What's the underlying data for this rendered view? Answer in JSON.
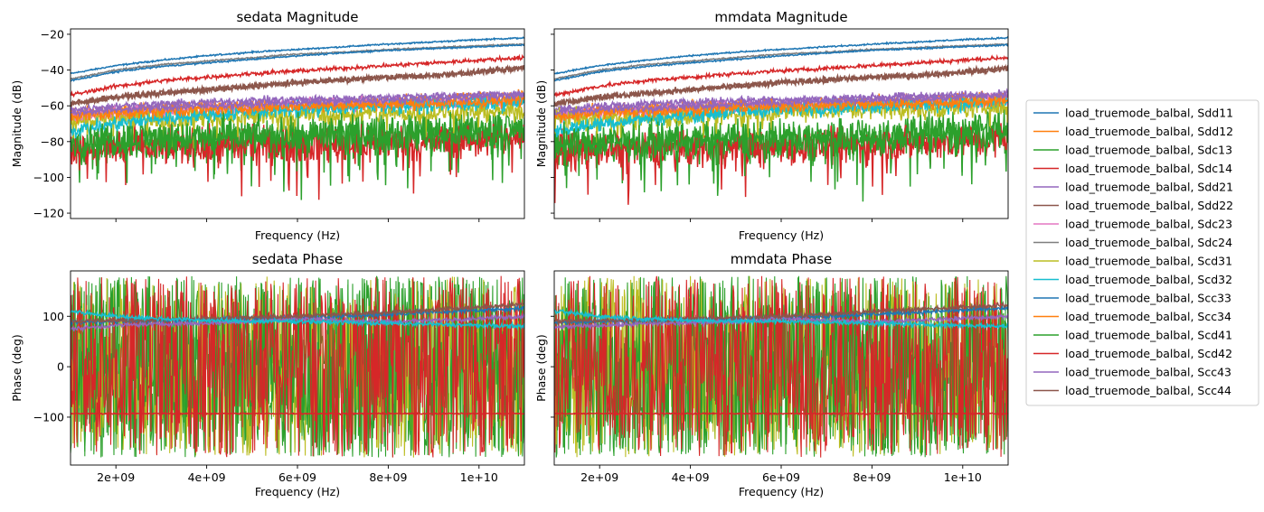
{
  "chart_data": [
    {
      "type": "line",
      "panel": "top-left",
      "title": "sedata Magnitude",
      "xlabel": "Frequency (Hz)",
      "ylabel": "Magnitude (dB)",
      "xlim": [
        1000000000.0,
        11000000000.0
      ],
      "ylim": [
        -123,
        -17
      ],
      "yticks": [
        -120,
        -100,
        -80,
        -60,
        -40,
        -20
      ],
      "xtick_labels_visible": false,
      "x": [
        1000000000.0,
        2000000000.0,
        3000000000.0,
        4000000000.0,
        5000000000.0,
        6000000000.0,
        7000000000.0,
        8000000000.0,
        9000000000.0,
        10000000000.0,
        11000000000.0
      ],
      "series": [
        {
          "name": "Sdd11",
          "values": [
            -42,
            -37.5,
            -34.5,
            -32,
            -30,
            -28.5,
            -27,
            -25.5,
            -24.3,
            -23,
            -22
          ]
        },
        {
          "name": "Sdd12",
          "values": [
            -65,
            -63,
            -62,
            -61,
            -60,
            -60,
            -59,
            -58,
            -57,
            -56,
            -55
          ]
        },
        {
          "name": "Sdc13",
          "values": [
            -82,
            -81,
            -80,
            -79,
            -78,
            -78,
            -77,
            -76,
            -75,
            -74,
            -73
          ]
        },
        {
          "name": "Sdc14",
          "values": [
            -85,
            -84,
            -83,
            -83,
            -82,
            -82,
            -82,
            -81,
            -80,
            -79,
            -78
          ]
        },
        {
          "name": "Sdd21",
          "values": [
            -62,
            -60,
            -59,
            -58,
            -57,
            -56.5,
            -56,
            -55,
            -54.5,
            -54,
            -53
          ]
        },
        {
          "name": "Sdd22",
          "values": [
            -59,
            -55,
            -53,
            -51,
            -49,
            -47,
            -45.5,
            -44,
            -43,
            -41,
            -39
          ]
        },
        {
          "name": "Sdc23",
          "values": [
            -66,
            -64,
            -63,
            -62,
            -61,
            -60,
            -59.5,
            -59,
            -58.5,
            -58,
            -57
          ]
        },
        {
          "name": "Sdc24",
          "values": [
            -45,
            -40,
            -37,
            -35,
            -33,
            -31,
            -30,
            -28.5,
            -27.5,
            -26.5,
            -25.5
          ]
        },
        {
          "name": "Scd31",
          "values": [
            -68,
            -67,
            -67,
            -66,
            -66,
            -65,
            -65,
            -64,
            -64,
            -63,
            -63
          ]
        },
        {
          "name": "Scd32",
          "values": [
            -74,
            -70,
            -67,
            -65,
            -63,
            -62,
            -61,
            -60,
            -59.5,
            -59,
            -58
          ]
        },
        {
          "name": "Scc33",
          "values": [
            -46,
            -41,
            -38,
            -36,
            -34,
            -32,
            -30.5,
            -29,
            -28,
            -27,
            -26
          ]
        },
        {
          "name": "Scc34",
          "values": [
            -66,
            -64,
            -63,
            -62,
            -61,
            -60,
            -59.5,
            -59,
            -58.5,
            -58,
            -57
          ]
        },
        {
          "name": "Scd41",
          "values": [
            -80,
            -79,
            -78,
            -78,
            -77,
            -77,
            -76,
            -76,
            -75,
            -75,
            -74
          ]
        },
        {
          "name": "Scd42",
          "values": [
            -54,
            -49,
            -46,
            -44,
            -42,
            -40.5,
            -39,
            -37.5,
            -36,
            -34.5,
            -33
          ]
        },
        {
          "name": "Scc43",
          "values": [
            -64,
            -62,
            -61,
            -60,
            -59,
            -58,
            -57.5,
            -57,
            -56,
            -55,
            -54
          ]
        },
        {
          "name": "Scc44",
          "values": [
            -59,
            -55,
            -53,
            -51,
            -49,
            -47,
            -45.5,
            -44,
            -43,
            -41,
            -39
          ]
        }
      ]
    },
    {
      "type": "line",
      "panel": "top-right",
      "title": "mmdata Magnitude",
      "xlabel": "Frequency (Hz)",
      "ylabel": "Magnitude (dB)",
      "xlim": [
        1000000000.0,
        11000000000.0
      ],
      "ylim": [
        -123,
        -17
      ],
      "yticks": [
        -120,
        -100,
        -80,
        -60,
        -40,
        -20
      ],
      "ytick_labels_visible": false,
      "xtick_labels_visible": false,
      "x": [
        1000000000.0,
        2000000000.0,
        3000000000.0,
        4000000000.0,
        5000000000.0,
        6000000000.0,
        7000000000.0,
        8000000000.0,
        9000000000.0,
        10000000000.0,
        11000000000.0
      ],
      "series": [
        {
          "name": "Sdd11",
          "values": [
            -42,
            -37.5,
            -34.5,
            -32,
            -30,
            -28.5,
            -27,
            -25.5,
            -24.3,
            -23,
            -22
          ]
        },
        {
          "name": "Sdd12",
          "values": [
            -65,
            -63,
            -62,
            -61,
            -60,
            -60,
            -59,
            -58,
            -57,
            -56,
            -55
          ]
        },
        {
          "name": "Sdc13",
          "values": [
            -83,
            -82,
            -81,
            -80,
            -80,
            -79,
            -78,
            -77,
            -76,
            -74,
            -72
          ]
        },
        {
          "name": "Sdc14",
          "values": [
            -86,
            -85,
            -84,
            -84,
            -83,
            -83,
            -83,
            -82,
            -81,
            -80,
            -79
          ]
        },
        {
          "name": "Sdd21",
          "values": [
            -62,
            -60,
            -59,
            -58,
            -57,
            -56.5,
            -56,
            -55,
            -54.5,
            -54,
            -53
          ]
        },
        {
          "name": "Sdd22",
          "values": [
            -59,
            -55,
            -53,
            -51,
            -49,
            -47,
            -45.5,
            -44,
            -43,
            -41,
            -39
          ]
        },
        {
          "name": "Sdc23",
          "values": [
            -66,
            -64,
            -63,
            -62,
            -61,
            -60,
            -59.5,
            -59,
            -58.5,
            -58,
            -57
          ]
        },
        {
          "name": "Sdc24",
          "values": [
            -45,
            -40,
            -37,
            -35,
            -33,
            -31,
            -30,
            -28.5,
            -27.5,
            -26.5,
            -25.5
          ]
        },
        {
          "name": "Scd31",
          "values": [
            -68,
            -67,
            -67,
            -66,
            -65,
            -63,
            -62,
            -62,
            -62,
            -61,
            -60
          ]
        },
        {
          "name": "Scd32",
          "values": [
            -74,
            -70,
            -67,
            -65,
            -63,
            -62,
            -61,
            -60,
            -59.5,
            -59,
            -58
          ]
        },
        {
          "name": "Scc33",
          "values": [
            -46,
            -41,
            -38,
            -36,
            -34,
            -32,
            -30.5,
            -29,
            -28,
            -27,
            -26
          ]
        },
        {
          "name": "Scc34",
          "values": [
            -66,
            -64,
            -63,
            -62,
            -61,
            -60,
            -59.5,
            -59,
            -58.5,
            -58,
            -57
          ]
        },
        {
          "name": "Scd41",
          "values": [
            -82,
            -81,
            -80,
            -80,
            -79,
            -79,
            -79,
            -78,
            -77,
            -76,
            -75
          ]
        },
        {
          "name": "Scd42",
          "values": [
            -54,
            -49,
            -46,
            -44,
            -42,
            -40.5,
            -39,
            -37.5,
            -36,
            -34.5,
            -33
          ]
        },
        {
          "name": "Scc43",
          "values": [
            -64,
            -62,
            -61,
            -60,
            -59,
            -58,
            -57.5,
            -57,
            -56,
            -55,
            -54
          ]
        },
        {
          "name": "Scc44",
          "values": [
            -59,
            -55,
            -53,
            -51,
            -49,
            -47,
            -45.5,
            -44,
            -43,
            -41,
            -39
          ]
        }
      ]
    },
    {
      "type": "line",
      "panel": "bottom-left",
      "title": "sedata Phase",
      "xlabel": "Frequency (Hz)",
      "ylabel": "Phase (deg)",
      "xlim": [
        1000000000.0,
        11000000000.0
      ],
      "ylim": [
        -195,
        190
      ],
      "yticks": [
        -100,
        0,
        100
      ],
      "xticks": [
        2000000000.0,
        4000000000.0,
        6000000000.0,
        8000000000.0,
        10000000000.0
      ],
      "xtick_labels": [
        "2e+09",
        "4e+09",
        "6e+09",
        "8e+09",
        "1e+10"
      ],
      "x": [
        1000000000.0,
        2000000000.0,
        3000000000.0,
        4000000000.0,
        5000000000.0,
        6000000000.0,
        7000000000.0,
        8000000000.0,
        9000000000.0,
        10000000000.0,
        11000000000.0
      ],
      "series": [
        {
          "name": "Sdd11",
          "values": [
            88,
            90,
            91,
            93,
            95,
            98,
            100,
            104,
            108,
            112,
            116
          ]
        },
        {
          "name": "Sdd21",
          "values": [
            75,
            82,
            85,
            86,
            90,
            96,
            92,
            90,
            92,
            96,
            100
          ]
        },
        {
          "name": "Scc44",
          "values": [
            90,
            92,
            93,
            95,
            97,
            100,
            104,
            108,
            113,
            118,
            124
          ]
        },
        {
          "name": "Scd42",
          "values": [
            -93,
            -93,
            -93,
            -93,
            -93,
            -93,
            -93,
            -93,
            -93,
            -93,
            -93
          ]
        },
        {
          "name": "Scd32",
          "values": [
            110,
            100,
            95,
            92,
            90,
            90,
            88,
            86,
            84,
            82,
            80
          ]
        }
      ],
      "noisy_series": [
        "Sdc13",
        "Scd31",
        "Scd41",
        "Sdc14"
      ],
      "noisy_range": [
        -180,
        180
      ]
    },
    {
      "type": "line",
      "panel": "bottom-right",
      "title": "mmdata Phase",
      "xlabel": "Frequency (Hz)",
      "ylabel": "Phase (deg)",
      "xlim": [
        1000000000.0,
        11000000000.0
      ],
      "ylim": [
        -195,
        190
      ],
      "yticks": [
        -100,
        0,
        100
      ],
      "ytick_labels_visible": false,
      "xticks": [
        2000000000.0,
        4000000000.0,
        6000000000.0,
        8000000000.0,
        10000000000.0
      ],
      "xtick_labels": [
        "2e+09",
        "4e+09",
        "6e+09",
        "8e+09",
        "1e+10"
      ],
      "x": [
        1000000000.0,
        2000000000.0,
        3000000000.0,
        4000000000.0,
        5000000000.0,
        6000000000.0,
        7000000000.0,
        8000000000.0,
        9000000000.0,
        10000000000.0,
        11000000000.0
      ],
      "series": [
        {
          "name": "Sdd11",
          "values": [
            88,
            90,
            91,
            93,
            95,
            98,
            100,
            104,
            108,
            112,
            116
          ]
        },
        {
          "name": "Sdd21",
          "values": [
            78,
            82,
            85,
            87,
            90,
            96,
            92,
            90,
            92,
            96,
            100
          ]
        },
        {
          "name": "Scc44",
          "values": [
            90,
            92,
            93,
            95,
            97,
            100,
            104,
            110,
            114,
            118,
            122
          ]
        },
        {
          "name": "Scd42",
          "values": [
            -93,
            -93,
            -93,
            -93,
            -93,
            -93,
            -93,
            -93,
            -93,
            -93,
            -93
          ]
        },
        {
          "name": "Scd32",
          "values": [
            110,
            100,
            95,
            92,
            90,
            90,
            88,
            86,
            84,
            82,
            80
          ]
        }
      ],
      "noisy_series": [
        "Sdc13",
        "Scd31",
        "Scd41",
        "Sdc14"
      ],
      "noisy_range": [
        -180,
        180
      ]
    }
  ],
  "legend": {
    "placement": "right",
    "entries": [
      {
        "label": "load_truemode_balbal, Sdd11",
        "color": "#1f77b4"
      },
      {
        "label": "load_truemode_balbal, Sdd12",
        "color": "#ff7f0e"
      },
      {
        "label": "load_truemode_balbal, Sdc13",
        "color": "#2ca02c"
      },
      {
        "label": "load_truemode_balbal, Sdc14",
        "color": "#d62728"
      },
      {
        "label": "load_truemode_balbal, Sdd21",
        "color": "#9467bd"
      },
      {
        "label": "load_truemode_balbal, Sdd22",
        "color": "#8c564b"
      },
      {
        "label": "load_truemode_balbal, Sdc23",
        "color": "#e377c2"
      },
      {
        "label": "load_truemode_balbal, Sdc24",
        "color": "#7f7f7f"
      },
      {
        "label": "load_truemode_balbal, Scd31",
        "color": "#bcbd22"
      },
      {
        "label": "load_truemode_balbal, Scd32",
        "color": "#17becf"
      },
      {
        "label": "load_truemode_balbal, Scc33",
        "color": "#1f77b4"
      },
      {
        "label": "load_truemode_balbal, Scc34",
        "color": "#ff7f0e"
      },
      {
        "label": "load_truemode_balbal, Scd41",
        "color": "#2ca02c"
      },
      {
        "label": "load_truemode_balbal, Scd42",
        "color": "#d62728"
      },
      {
        "label": "load_truemode_balbal, Scc43",
        "color": "#9467bd"
      },
      {
        "label": "load_truemode_balbal, Scc44",
        "color": "#8c564b"
      }
    ]
  },
  "series_colors": {
    "Sdd11": "#1f77b4",
    "Sdd12": "#ff7f0e",
    "Sdc13": "#2ca02c",
    "Sdc14": "#d62728",
    "Sdd21": "#9467bd",
    "Sdd22": "#8c564b",
    "Sdc23": "#e377c2",
    "Sdc24": "#7f7f7f",
    "Scd31": "#bcbd22",
    "Scd32": "#17becf",
    "Scc33": "#1f77b4",
    "Scc34": "#ff7f0e",
    "Scd41": "#2ca02c",
    "Scd42": "#d62728",
    "Scc43": "#9467bd",
    "Scc44": "#8c564b"
  },
  "noise_amplitude": {
    "Sdd11": 0.3,
    "Sdd12": 2.5,
    "Sdc13": 8,
    "Sdc14": 7,
    "Sdd21": 1.5,
    "Sdd22": 1.2,
    "Sdc23": 2.5,
    "Sdc24": 0.3,
    "Scd31": 4,
    "Scd32": 3,
    "Scc33": 0.3,
    "Scc34": 2.5,
    "Scd41": 7,
    "Scd42": 0.8,
    "Scc43": 1.5,
    "Scc44": 1.2
  }
}
